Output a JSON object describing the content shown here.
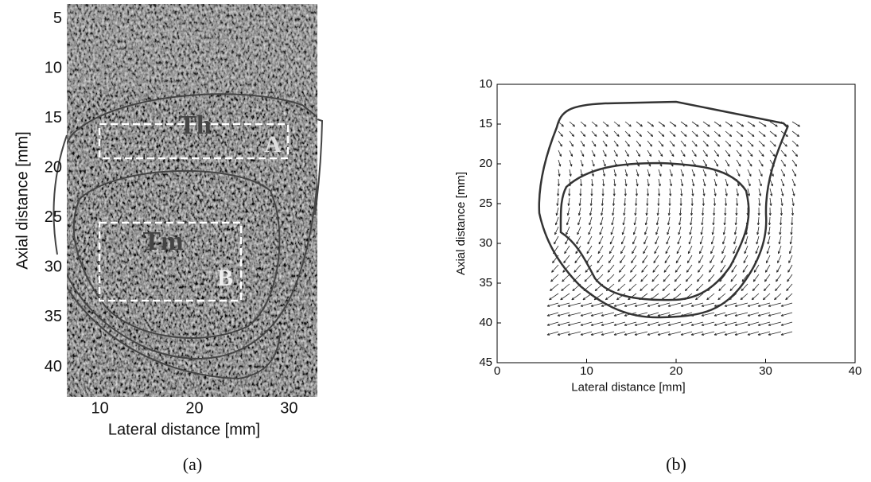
{
  "chart_data": [
    {
      "type": "image",
      "xlabel": "Lateral distance [mm]",
      "ylabel": "Axial distance [mm]",
      "caption": "(a)",
      "xlim": [
        6.5,
        33
      ],
      "ylim": [
        3.5,
        43
      ],
      "xticks": [
        10,
        20,
        30
      ],
      "yticks": [
        5,
        10,
        15,
        20,
        25,
        30,
        35,
        40
      ],
      "annotations": [
        "Th",
        "A",
        "Tm",
        "B"
      ]
    },
    {
      "type": "quiver",
      "xlabel": "Lateral distance [mm]",
      "ylabel": "Axial distance [mm]",
      "caption": "(b)",
      "xlim": [
        0,
        40
      ],
      "ylim": [
        10,
        45
      ],
      "xticks": [
        0,
        10,
        20,
        30,
        40
      ],
      "yticks": [
        10,
        15,
        20,
        25,
        30,
        35,
        40,
        45
      ]
    }
  ]
}
